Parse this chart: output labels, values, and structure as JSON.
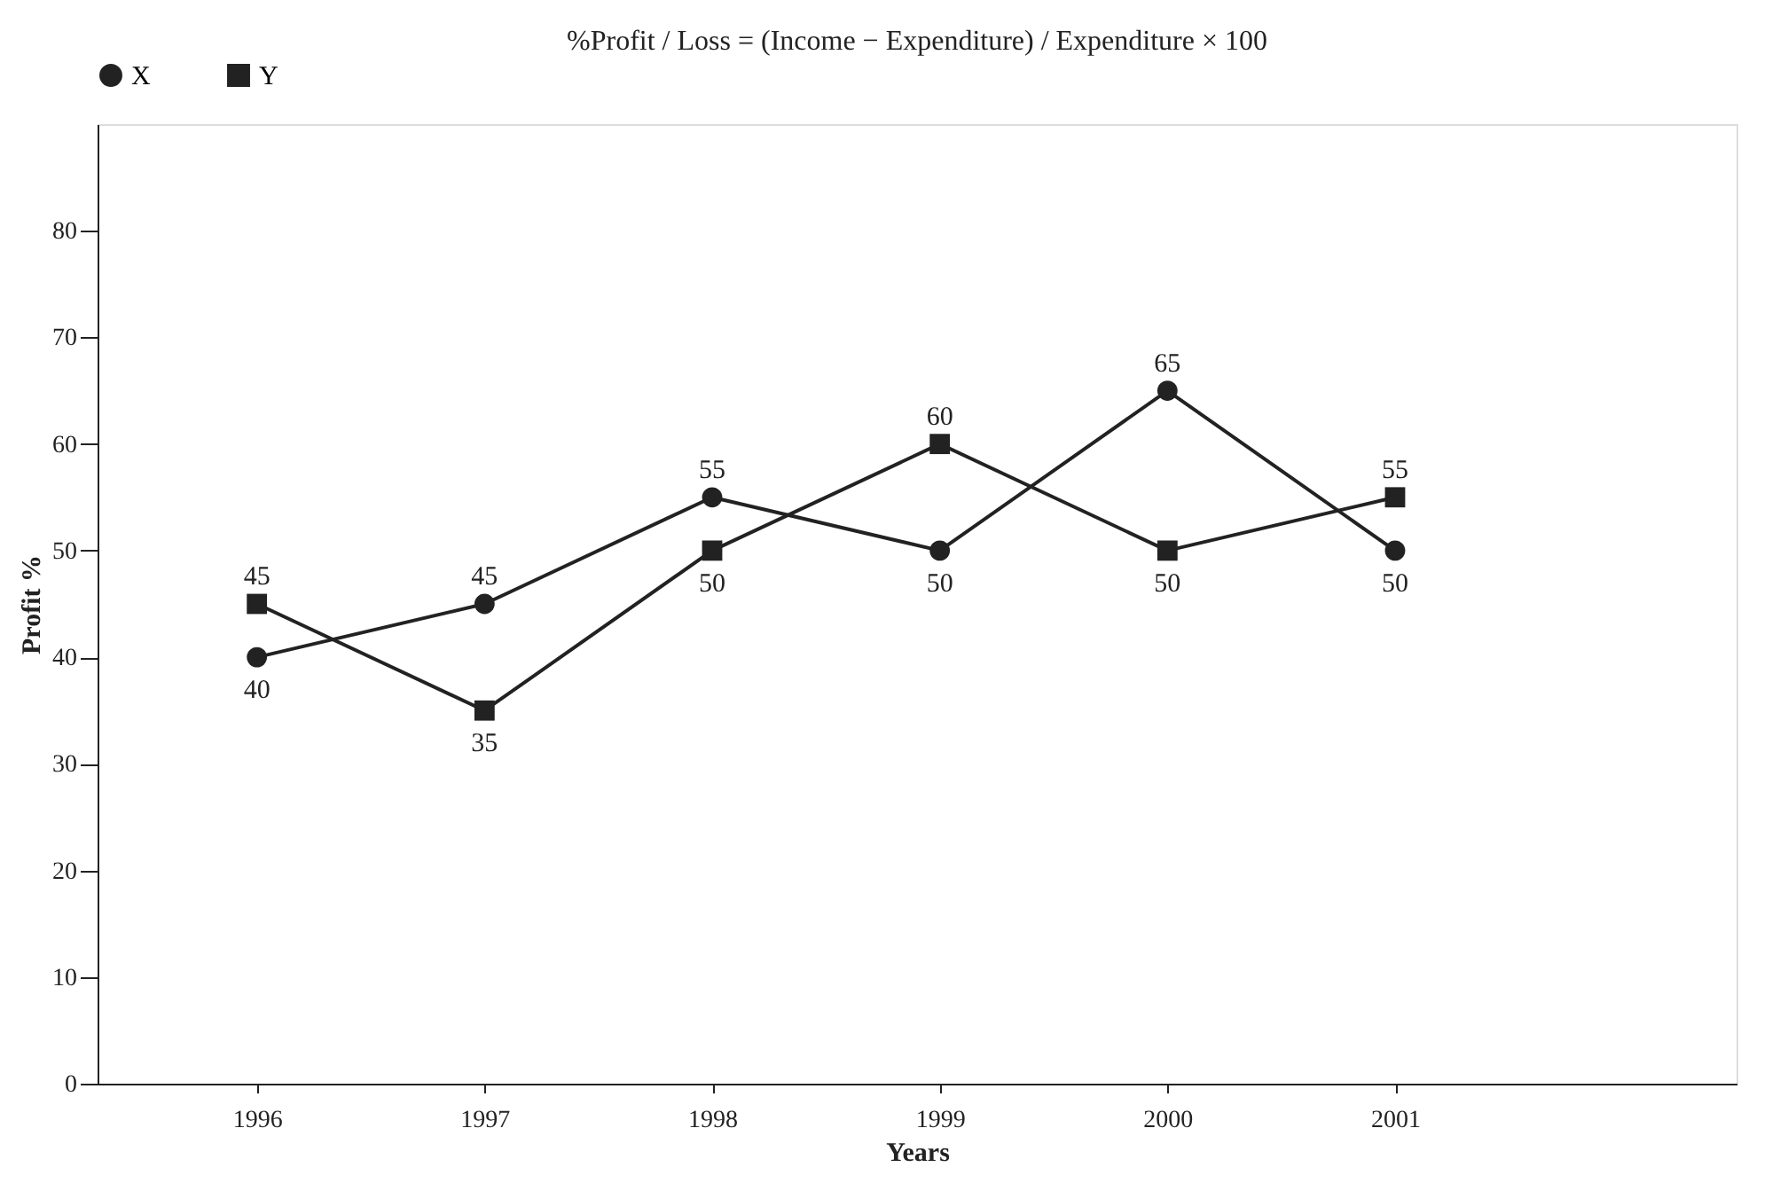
{
  "chart_data": {
    "type": "line",
    "title": "%Profit / Loss = (Income − Expenditure) / Expenditure × 100",
    "xlabel": "Years",
    "ylabel": "Profit %",
    "categories": [
      "1996",
      "1997",
      "1998",
      "1999",
      "2000",
      "2001"
    ],
    "series": [
      {
        "name": "X",
        "color": "#222222",
        "marker": "circle",
        "values": [
          40,
          45,
          55,
          50,
          65,
          50
        ]
      },
      {
        "name": "Y",
        "color": "#222222",
        "marker": "square",
        "values": [
          45,
          35,
          50,
          60,
          50,
          55
        ]
      }
    ],
    "ylim": [
      0,
      90
    ],
    "yticks": [
      0,
      10,
      20,
      30,
      40,
      50,
      60,
      70,
      80
    ],
    "grid": false,
    "legend": "top",
    "data_labels": true,
    "line_style": "solid"
  }
}
